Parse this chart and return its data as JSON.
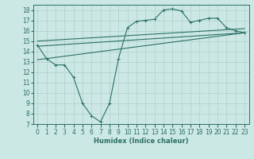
{
  "xlabel": "Humidex (Indice chaleur)",
  "bg_color": "#cce8e4",
  "grid_color": "#b0d0cc",
  "line_color": "#2d7068",
  "xlim": [
    -0.5,
    23.5
  ],
  "ylim": [
    7,
    18.5
  ],
  "yticks": [
    7,
    8,
    9,
    10,
    11,
    12,
    13,
    14,
    15,
    16,
    17,
    18
  ],
  "xticks": [
    0,
    1,
    2,
    3,
    4,
    5,
    6,
    7,
    8,
    9,
    10,
    11,
    12,
    13,
    14,
    15,
    16,
    17,
    18,
    19,
    20,
    21,
    22,
    23
  ],
  "line1_x": [
    0,
    1,
    2,
    3,
    4,
    5,
    6,
    7,
    8,
    9,
    10,
    11,
    12,
    13,
    14,
    15,
    16,
    17,
    18,
    19,
    20,
    21,
    22,
    23
  ],
  "line1_y": [
    14.6,
    13.3,
    12.7,
    12.7,
    11.5,
    9.0,
    7.8,
    7.2,
    9.0,
    13.3,
    16.3,
    16.9,
    17.0,
    17.1,
    18.0,
    18.1,
    17.9,
    16.8,
    17.0,
    17.2,
    17.2,
    16.3,
    16.0,
    15.8
  ],
  "line2_x": [
    0,
    23
  ],
  "line2_y": [
    13.2,
    15.8
  ],
  "line3_x": [
    0,
    23
  ],
  "line3_y": [
    14.5,
    15.8
  ],
  "line4_x": [
    0,
    23
  ],
  "line4_y": [
    15.0,
    16.2
  ],
  "marker_size": 2.5,
  "linewidth": 0.8,
  "tick_fontsize": 5.5
}
